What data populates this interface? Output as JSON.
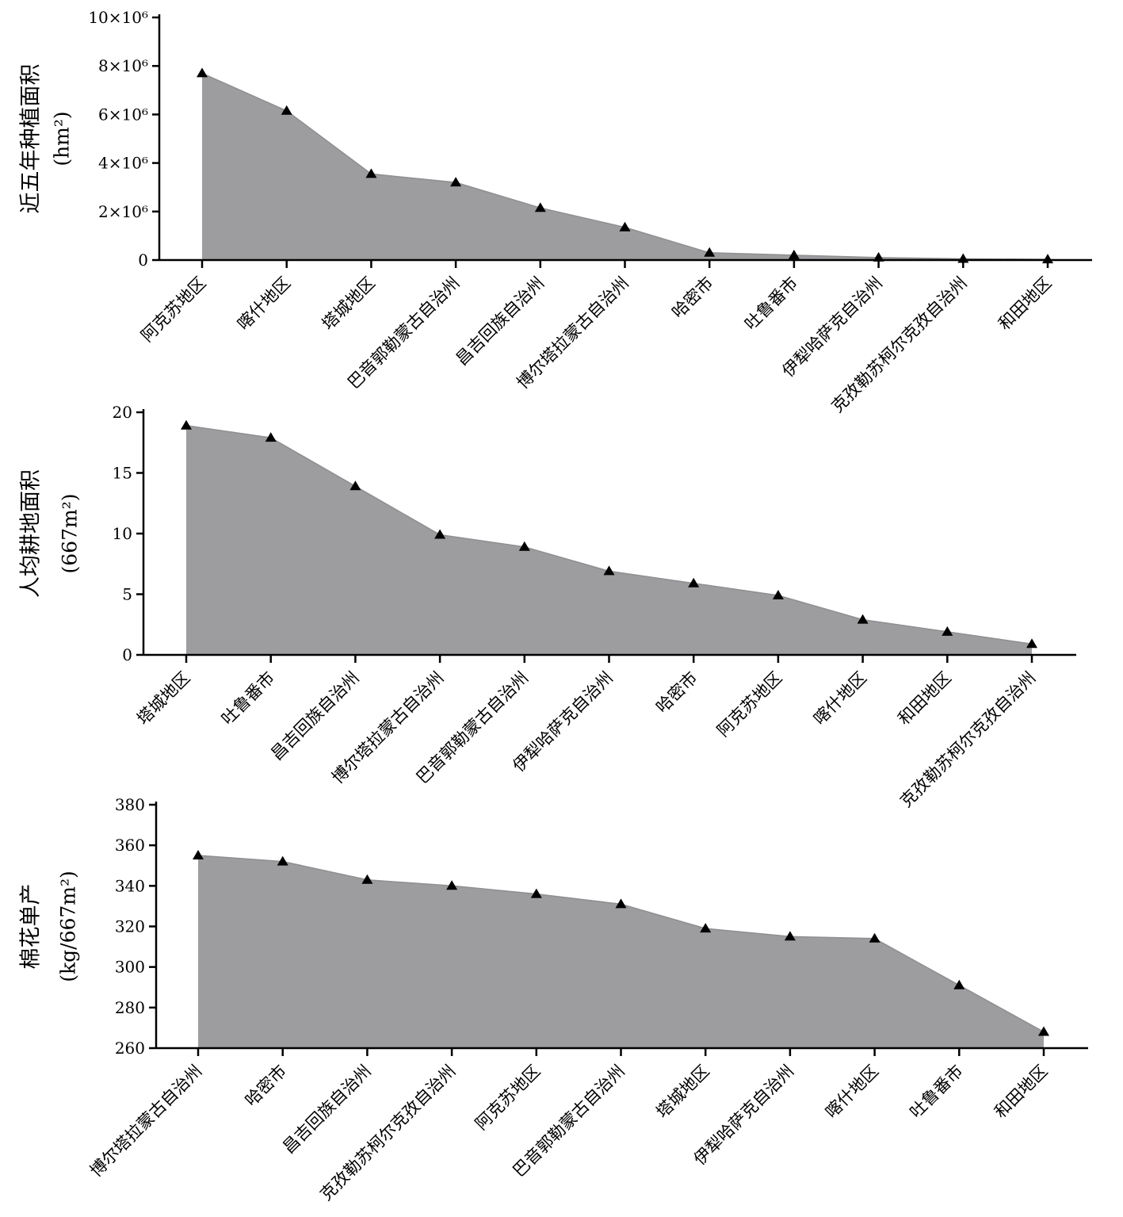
{
  "chart_data": [
    {
      "type": "area",
      "ylabel": "近五年种植面积",
      "yunit": "(hm²)",
      "ylim": [
        0,
        10000000
      ],
      "yticks": [
        {
          "value": 0,
          "label": "0"
        },
        {
          "value": 2000000,
          "label": "2×10⁶"
        },
        {
          "value": 4000000,
          "label": "4×10⁶"
        },
        {
          "value": 6000000,
          "label": "6×10⁶"
        },
        {
          "value": 8000000,
          "label": "8×10⁶"
        },
        {
          "value": 10000000,
          "label": "10×10⁶"
        }
      ],
      "categories": [
        "阿克苏地区",
        "喀什地区",
        "塔城地区",
        "巴音郭勒蒙古自治州",
        "昌吉回族自治州",
        "博尔塔拉蒙古自治州",
        "哈密市",
        "吐鲁番市",
        "伊犁哈萨克自治州",
        "克孜勒苏柯尔克孜自治州",
        "和田地区"
      ],
      "values": [
        7700000,
        6150000,
        3550000,
        3200000,
        2150000,
        1350000,
        300000,
        200000,
        100000,
        50000,
        30000
      ]
    },
    {
      "type": "area",
      "ylabel": "人均耕地面积",
      "yunit": "(667m²)",
      "ylim": [
        0,
        20
      ],
      "yticks": [
        {
          "value": 0,
          "label": "0"
        },
        {
          "value": 5,
          "label": "5"
        },
        {
          "value": 10,
          "label": "10"
        },
        {
          "value": 15,
          "label": "15"
        },
        {
          "value": 20,
          "label": "20"
        }
      ],
      "categories": [
        "塔城地区",
        "吐鲁番市",
        "昌吉回族自治州",
        "博尔塔拉蒙古自治州",
        "巴音郭勒蒙古自治州",
        "伊犁哈萨克自治州",
        "哈密市",
        "阿克苏地区",
        "喀什地区",
        "和田地区",
        "克孜勒苏柯尔克孜自治州"
      ],
      "values": [
        18.9,
        17.9,
        13.9,
        9.9,
        8.9,
        6.9,
        5.9,
        4.9,
        2.9,
        1.9,
        0.9
      ]
    },
    {
      "type": "area",
      "ylabel": "棉花单产",
      "yunit": "(kg/667m²)",
      "ylim": [
        260,
        380
      ],
      "yticks": [
        {
          "value": 260,
          "label": "260"
        },
        {
          "value": 280,
          "label": "280"
        },
        {
          "value": 300,
          "label": "300"
        },
        {
          "value": 320,
          "label": "320"
        },
        {
          "value": 340,
          "label": "340"
        },
        {
          "value": 360,
          "label": "360"
        },
        {
          "value": 380,
          "label": "380"
        }
      ],
      "categories": [
        "博尔塔拉蒙古自治州",
        "哈密市",
        "昌吉回族自治州",
        "克孜勒苏柯尔克孜自治州",
        "阿克苏地区",
        "巴音郭勒蒙古自治州",
        "塔城地区",
        "伊犁哈萨克自治州",
        "喀什地区",
        "吐鲁番市",
        "和田地区"
      ],
      "values": [
        355,
        352,
        343,
        340,
        336,
        331,
        319,
        315,
        314,
        291,
        268
      ]
    }
  ]
}
